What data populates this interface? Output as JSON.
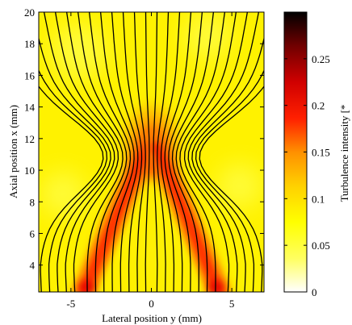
{
  "chart_data": {
    "type": "heatmap",
    "title": "",
    "xlabel": "Lateral position y (mm)",
    "ylabel": "Axial position x (mm)",
    "xlim": [
      -7,
      7
    ],
    "ylim": [
      2.3,
      20
    ],
    "x_ticks": [
      -5,
      0,
      5
    ],
    "y_ticks": [
      4,
      6,
      8,
      10,
      12,
      14,
      16,
      18,
      20
    ],
    "colorbar": {
      "label": "Turbulence intensity [*",
      "range": [
        0,
        0.3
      ],
      "ticks": [
        0,
        0.05,
        0.1,
        0.15,
        0.2,
        0.25
      ],
      "colormap": [
        "#ffffff",
        "#ffff40",
        "#ffff00",
        "#ffd000",
        "#ff8000",
        "#ff0000",
        "#c00000",
        "#600000",
        "#000000"
      ]
    },
    "field_features": {
      "background_intensity": 0.05,
      "flame_arms": [
        {
          "from": [
            -4.2,
            2.3
          ],
          "to": [
            -0.3,
            11.5
          ],
          "peak_intensity": 0.2
        },
        {
          "from": [
            4.2,
            2.3
          ],
          "to": [
            0.3,
            11.5
          ],
          "peak_intensity": 0.2
        }
      ],
      "tip_region": {
        "center": [
          0,
          11
        ],
        "peak_intensity": 0.22
      }
    },
    "streamlines": {
      "count": 26,
      "color": "#000000"
    }
  }
}
